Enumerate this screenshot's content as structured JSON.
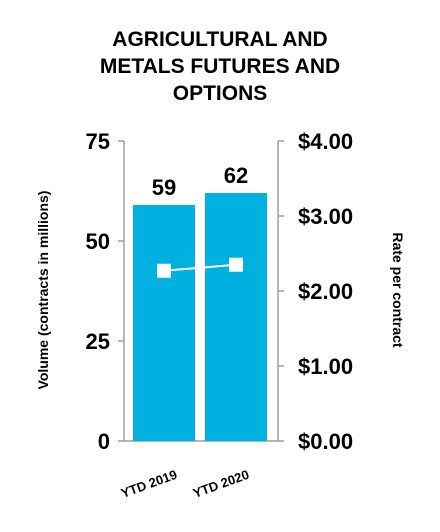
{
  "chart_data": {
    "type": "bar",
    "title_lines": [
      "AGRICULTURAL AND",
      "METALS FUTURES AND",
      "OPTIONS"
    ],
    "categories": [
      "YTD 2019",
      "YTD 2020"
    ],
    "series": [
      {
        "type": "bar",
        "axis": "left",
        "values": [
          59,
          62
        ],
        "labels": [
          "59",
          "62"
        ],
        "color": "#00b0e0"
      },
      {
        "type": "line",
        "axis": "right",
        "values": [
          2.27,
          2.35
        ],
        "color": "#ffffff"
      }
    ],
    "y_left": {
      "label": "Volume (contracts in millions)",
      "ylim": [
        0,
        75
      ],
      "ticks": [
        0,
        25,
        50,
        75
      ],
      "tick_labels": [
        "0",
        "25",
        "50",
        "75"
      ]
    },
    "y_right": {
      "label": "Rate per contract",
      "ylim": [
        0,
        4
      ],
      "ticks": [
        0,
        1,
        2,
        3,
        4
      ],
      "tick_labels": [
        "$0.00",
        "$1.00",
        "$2.00",
        "$3.00",
        "$4.00"
      ]
    },
    "grid": false,
    "axis_color": "#9e9e9e"
  }
}
